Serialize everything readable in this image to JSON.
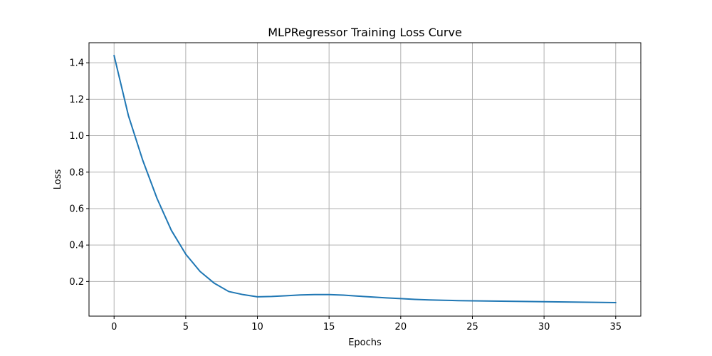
{
  "chart_data": {
    "type": "line",
    "title": "MLPRegressor Training Loss Curve",
    "xlabel": "Epochs",
    "ylabel": "Loss",
    "xlim": [
      -1.75,
      36.75
    ],
    "ylim": [
      0.01,
      1.51
    ],
    "xticks": [
      0,
      5,
      10,
      15,
      20,
      25,
      30,
      35
    ],
    "xtick_labels": [
      "0",
      "5",
      "10",
      "15",
      "20",
      "25",
      "30",
      "35"
    ],
    "yticks": [
      0.2,
      0.4,
      0.6,
      0.8,
      1.0,
      1.2,
      1.4
    ],
    "ytick_labels": [
      "0.2",
      "0.4",
      "0.6",
      "0.8",
      "1.0",
      "1.2",
      "1.4"
    ],
    "grid": true,
    "series": [
      {
        "color": "#1f77b4",
        "x": [
          0,
          1,
          2,
          3,
          4,
          5,
          6,
          7,
          8,
          9,
          10,
          11,
          12,
          13,
          14,
          15,
          16,
          17,
          18,
          19,
          20,
          21,
          22,
          23,
          24,
          25,
          26,
          27,
          28,
          29,
          30,
          31,
          32,
          33,
          34,
          35
        ],
        "values": [
          1.44,
          1.11,
          0.865,
          0.655,
          0.48,
          0.35,
          0.255,
          0.19,
          0.145,
          0.128,
          0.116,
          0.118,
          0.122,
          0.126,
          0.128,
          0.128,
          0.125,
          0.12,
          0.115,
          0.11,
          0.106,
          0.102,
          0.099,
          0.097,
          0.095,
          0.094,
          0.093,
          0.092,
          0.091,
          0.09,
          0.089,
          0.088,
          0.087,
          0.086,
          0.085,
          0.084
        ]
      }
    ]
  }
}
